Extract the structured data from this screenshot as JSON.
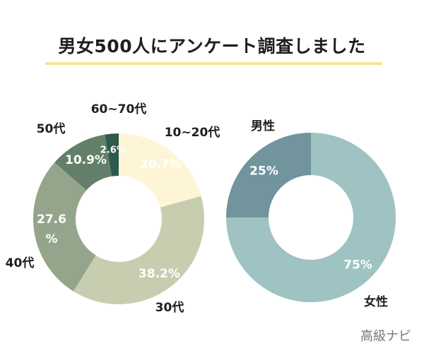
{
  "title": "男女500人にアンケート調査しました",
  "watermark": "高級ナビ",
  "chart_data": [
    {
      "type": "pie",
      "name": "age",
      "categories": [
        "10~20代",
        "30代",
        "40代",
        "50代",
        "60~70代"
      ],
      "values": [
        20.7,
        38.2,
        27.6,
        10.9,
        2.6
      ],
      "value_labels": [
        "20.7%",
        "38.2%",
        "27.6\n%",
        "10.9%",
        "2.6%"
      ],
      "colors": [
        "#fef5d6",
        "#c7ceaf",
        "#94a58b",
        "#637f69",
        "#2f5a4e"
      ],
      "label_colors": [
        "#ffffff",
        "#ffffff",
        "#ffffff",
        "#ffffff",
        "#ffffff"
      ]
    },
    {
      "type": "pie",
      "name": "gender",
      "categories": [
        "女性",
        "男性"
      ],
      "values": [
        75,
        25
      ],
      "value_labels": [
        "75%",
        "25%"
      ],
      "colors": [
        "#9ec3c2",
        "#71949d"
      ],
      "label_colors": [
        "#ffffff",
        "#ffffff"
      ]
    }
  ]
}
